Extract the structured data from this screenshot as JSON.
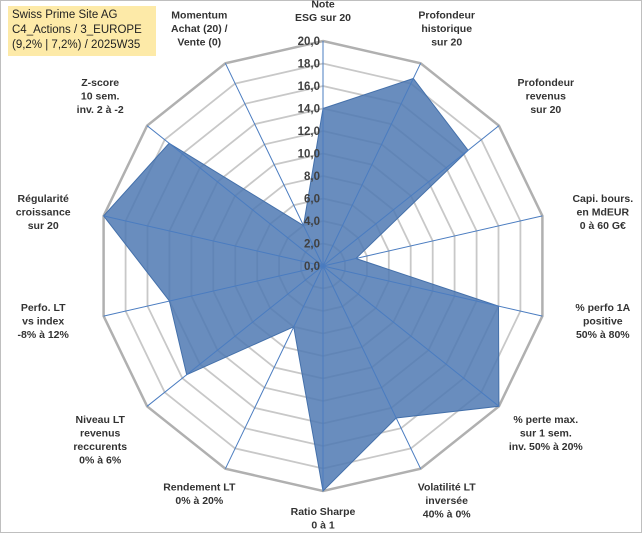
{
  "title_box": {
    "line1": "Swiss Prime Site AG",
    "line2": "C4_Actions / 3_EUROPE",
    "line3": "(9,2% | 7,2%) / 2025W35"
  },
  "chart_data": {
    "type": "radar",
    "rmin": 0,
    "rmax": 20,
    "tick_step": 2,
    "tick_labels": [
      "0,0",
      "2,0",
      "4,0",
      "6,0",
      "8,0",
      "10,0",
      "12,0",
      "14,0",
      "16,0",
      "18,0",
      "20,0"
    ],
    "grid": true,
    "fill_color": "#4f79b3",
    "grid_color": "#c8c8c8",
    "axis_color": "#4a7cc0",
    "axes": [
      {
        "label": [
          "Note",
          "ESG sur 20"
        ],
        "value": 14.0
      },
      {
        "label": [
          "Profondeur",
          "historique",
          "sur 20"
        ],
        "value": 18.5
      },
      {
        "label": [
          "Profondeur",
          "revenus",
          "sur 20"
        ],
        "value": 16.5
      },
      {
        "label": [
          "Capi. bours.",
          "en MdEUR",
          "0 à 60 G€"
        ],
        "value": 3.0
      },
      {
        "label": [
          "% perfo 1A",
          "positive",
          "50% à 80%"
        ],
        "value": 16.0
      },
      {
        "label": [
          "% perte max.",
          "sur 1 sem.",
          "inv. 50% à 20%"
        ],
        "value": 20.0
      },
      {
        "label": [
          "Volatilité LT",
          "inversée",
          "40% à 0%"
        ],
        "value": 15.0
      },
      {
        "label": [
          "Ratio Sharpe",
          "0 à 1"
        ],
        "value": 20.0
      },
      {
        "label": [
          "Rendement LT",
          "0% à 20%"
        ],
        "value": 6.0
      },
      {
        "label": [
          "Niveau LT",
          "revenus",
          "reccurents",
          "0% à 6%"
        ],
        "value": 15.5
      },
      {
        "label": [
          "Perfo. LT",
          "vs index",
          "-8% à 12%"
        ],
        "value": 14.0
      },
      {
        "label": [
          "Régularité",
          "croissance",
          "sur 20"
        ],
        "value": 20.0
      },
      {
        "label": [
          "Z-score",
          "10 sem.",
          "inv. 2 à -2"
        ],
        "value": 17.5
      },
      {
        "label": [
          "Momentum",
          "Achat (20) /",
          "Vente (0)"
        ],
        "value": 4.0
      }
    ]
  }
}
